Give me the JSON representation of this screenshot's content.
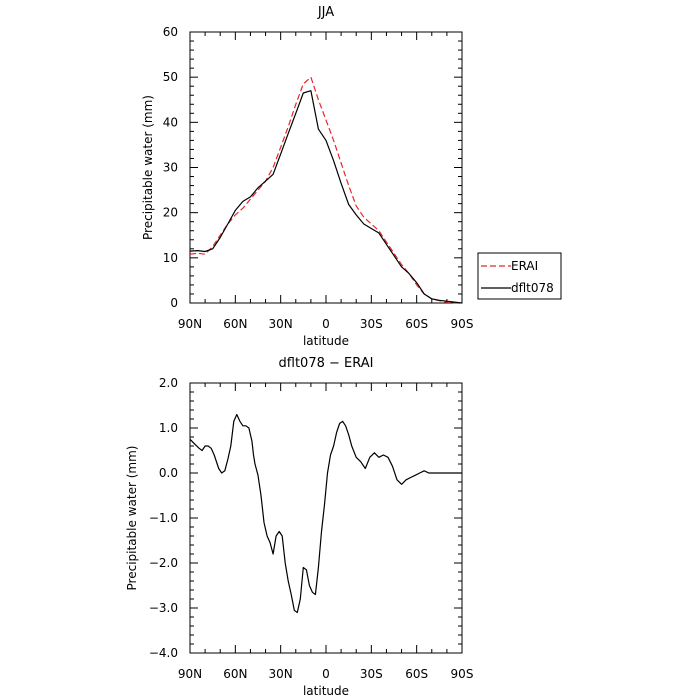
{
  "chart_data": [
    {
      "type": "line",
      "title": "JJA",
      "xlabel": "latitude",
      "ylabel": "Precipitable water (mm)",
      "xlim": [
        90,
        -90
      ],
      "ylim": [
        0,
        60
      ],
      "xticks": [
        90,
        60,
        30,
        0,
        -30,
        -60,
        -90
      ],
      "xtick_labels": [
        "90N",
        "60N",
        "30N",
        "0",
        "30S",
        "60S",
        "90S"
      ],
      "yticks": [
        0,
        10,
        20,
        30,
        40,
        50,
        60
      ],
      "ytick_labels": [
        "0",
        "10",
        "20",
        "30",
        "40",
        "50",
        "60"
      ],
      "grid": false,
      "legend_position": "right",
      "series": [
        {
          "name": "ERAI",
          "color": "#e8262d",
          "dash": "dashed",
          "x": [
            90,
            85,
            80,
            75,
            70,
            65,
            60,
            55,
            50,
            45,
            40,
            35,
            30,
            25,
            20,
            15,
            10,
            5,
            0,
            -5,
            -10,
            -15,
            -20,
            -25,
            -30,
            -35,
            -40,
            -45,
            -50,
            -55,
            -60,
            -65,
            -70,
            -75,
            -80,
            -85,
            -90
          ],
          "y": [
            10.8,
            11.0,
            10.8,
            12.5,
            15.0,
            17.5,
            19.5,
            21.0,
            23.0,
            25.0,
            27.0,
            30.0,
            34.5,
            39.0,
            44.0,
            48.5,
            50.0,
            45.0,
            40.5,
            36.0,
            31.0,
            26.0,
            21.5,
            19.0,
            17.5,
            16.0,
            13.5,
            11.0,
            8.5,
            6.5,
            4.0,
            2.0,
            0.9,
            0.5,
            0.2,
            0.0,
            0.0
          ]
        },
        {
          "name": "dflt078",
          "color": "#000000",
          "dash": "solid",
          "x": [
            90,
            85,
            80,
            75,
            70,
            65,
            60,
            55,
            50,
            45,
            40,
            35,
            30,
            25,
            20,
            15,
            10,
            5,
            0,
            -5,
            -10,
            -15,
            -20,
            -25,
            -30,
            -35,
            -40,
            -45,
            -50,
            -55,
            -60,
            -65,
            -70,
            -75,
            -80,
            -85,
            -90
          ],
          "y": [
            11.5,
            11.6,
            11.4,
            12.0,
            14.5,
            17.5,
            20.5,
            22.5,
            23.5,
            25.5,
            27.0,
            28.5,
            33.0,
            37.5,
            42.0,
            46.5,
            47.0,
            38.5,
            36.0,
            31.5,
            26.5,
            21.8,
            19.5,
            17.5,
            16.5,
            15.5,
            13.0,
            10.5,
            8.0,
            6.5,
            4.5,
            2.0,
            0.9,
            0.6,
            0.4,
            0.2,
            0.0
          ]
        }
      ]
    },
    {
      "type": "line",
      "title": "dflt078 − ERAI",
      "xlabel": "latitude",
      "ylabel": "Precipitable water (mm)",
      "xlim": [
        90,
        -90
      ],
      "ylim": [
        -4,
        2
      ],
      "xticks": [
        90,
        60,
        30,
        0,
        -30,
        -60,
        -90
      ],
      "xtick_labels": [
        "90N",
        "60N",
        "30N",
        "0",
        "30S",
        "60S",
        "90S"
      ],
      "yticks": [
        -4,
        -3,
        -2,
        -1,
        0,
        1,
        2
      ],
      "ytick_labels": [
        "−4.0",
        "−3.0",
        "−2.0",
        "−1.0",
        "0.0",
        "1.0",
        "2.0"
      ],
      "grid": false,
      "series": [
        {
          "color": "#000000",
          "dash": "solid",
          "x": [
            90,
            87,
            84,
            82,
            80,
            78,
            76,
            74,
            73,
            71,
            69,
            67,
            65,
            63,
            61,
            59,
            57,
            55,
            53,
            51,
            49,
            48,
            47,
            45,
            43,
            41,
            39,
            37,
            35,
            33,
            31,
            29,
            27,
            25,
            23,
            21,
            19,
            17,
            15,
            13,
            11,
            9,
            7,
            5,
            3,
            1,
            -1,
            -3,
            -5,
            -7,
            -9,
            -11,
            -13,
            -15,
            -17,
            -20,
            -23,
            -26,
            -29,
            -32,
            -35,
            -38,
            -41,
            -44,
            -47,
            -50,
            -53,
            -56,
            -59,
            -62,
            -65,
            -68,
            -71,
            -74,
            -77,
            -80,
            -83,
            -86,
            -88,
            -90
          ],
          "y": [
            0.75,
            0.65,
            0.55,
            0.5,
            0.6,
            0.6,
            0.55,
            0.4,
            0.3,
            0.1,
            0.0,
            0.05,
            0.3,
            0.6,
            1.15,
            1.3,
            1.15,
            1.05,
            1.05,
            1.0,
            0.7,
            0.4,
            0.2,
            -0.05,
            -0.5,
            -1.1,
            -1.4,
            -1.55,
            -1.8,
            -1.4,
            -1.3,
            -1.4,
            -2.0,
            -2.4,
            -2.7,
            -3.05,
            -3.1,
            -2.8,
            -2.1,
            -2.15,
            -2.5,
            -2.65,
            -2.7,
            -2.1,
            -1.3,
            -0.7,
            0.0,
            0.4,
            0.6,
            0.9,
            1.1,
            1.15,
            1.05,
            0.85,
            0.6,
            0.35,
            0.25,
            0.1,
            0.35,
            0.45,
            0.35,
            0.4,
            0.35,
            0.15,
            -0.15,
            -0.25,
            -0.15,
            -0.1,
            -0.05,
            0.0,
            0.05,
            0.0,
            0.0,
            0.0,
            0.0,
            0.0,
            0.0,
            0.0,
            0.0,
            0.0
          ]
        }
      ]
    }
  ]
}
